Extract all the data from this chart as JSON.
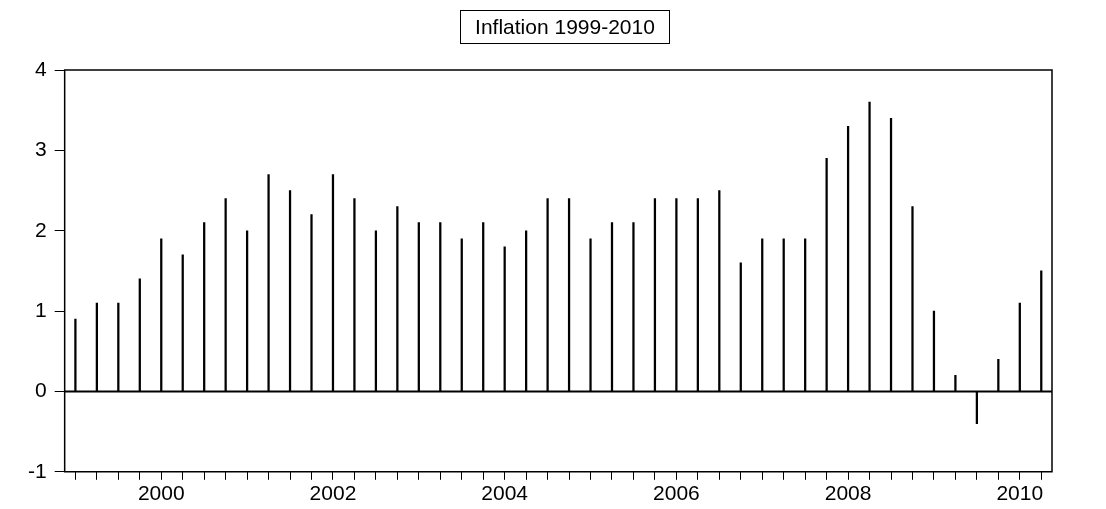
{
  "chart_data": {
    "type": "bar",
    "title": "Inflation 1999-2010",
    "categories": [
      null,
      null,
      null,
      null,
      "2000",
      null,
      null,
      null,
      null,
      null,
      null,
      null,
      "2002",
      null,
      null,
      null,
      null,
      null,
      null,
      null,
      "2004",
      null,
      null,
      null,
      null,
      null,
      null,
      null,
      "2006",
      null,
      null,
      null,
      null,
      null,
      null,
      null,
      "2008",
      null,
      null,
      null,
      null,
      null,
      null,
      null,
      "2010",
      null
    ],
    "values": [
      0.9,
      1.1,
      1.1,
      1.4,
      1.9,
      1.7,
      2.1,
      2.4,
      2.0,
      2.7,
      2.5,
      2.2,
      2.7,
      2.4,
      2.0,
      2.3,
      2.1,
      2.1,
      1.9,
      2.1,
      1.8,
      2.0,
      2.4,
      2.4,
      1.9,
      2.1,
      2.1,
      2.4,
      2.4,
      2.4,
      2.5,
      1.6,
      1.9,
      1.9,
      1.9,
      2.9,
      3.3,
      3.6,
      3.4,
      2.3,
      1.0,
      0.2,
      -0.4,
      0.4,
      1.1,
      1.5
    ],
    "color": "#000000",
    "ylim": [
      -1,
      4
    ],
    "yticks": [
      -1,
      0,
      1,
      2,
      3,
      4
    ],
    "grid": false,
    "legend": false,
    "ref_lines": [
      {
        "axis": "y",
        "value": 0,
        "color": "#000000"
      }
    ]
  }
}
